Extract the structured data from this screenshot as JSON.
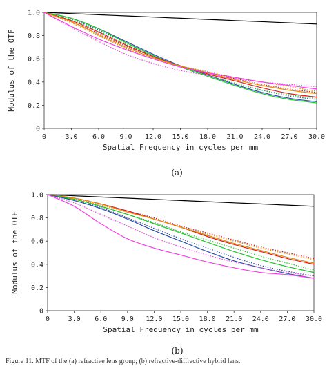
{
  "figure": {
    "caption": "Figure 11. MTF of the (a) refractive lens group; (b) refractive-diffractive hybrid lens."
  },
  "chart_data": [
    {
      "type": "line",
      "panel_label": "(a)",
      "xlabel": "Spatial Frequency in cycles per mm",
      "ylabel": "Modulus of the OTF",
      "xlim": [
        0,
        30
      ],
      "ylim": [
        0,
        1
      ],
      "xticks": [
        "0",
        "3.0",
        "6.0",
        "9.0",
        "12.0",
        "15.0",
        "18.0",
        "21.0",
        "24.0",
        "27.0",
        "30.0"
      ],
      "yticks": [
        "0",
        "0.2",
        "0.4",
        "0.6",
        "0.8",
        "1.0"
      ],
      "grid": false,
      "x": [
        0,
        3,
        6,
        9,
        12,
        15,
        18,
        21,
        24,
        27,
        30
      ],
      "series": [
        {
          "color": "#000000",
          "dash": "solid",
          "values": [
            1.0,
            0.99,
            0.98,
            0.97,
            0.96,
            0.95,
            0.94,
            0.93,
            0.92,
            0.91,
            0.9
          ]
        },
        {
          "color": "#2b4ea8",
          "dash": "solid",
          "values": [
            1.0,
            0.95,
            0.86,
            0.75,
            0.64,
            0.54,
            0.46,
            0.38,
            0.31,
            0.26,
            0.23
          ]
        },
        {
          "color": "#2b4ea8",
          "dash": "dotted",
          "values": [
            1.0,
            0.94,
            0.85,
            0.74,
            0.63,
            0.54,
            0.46,
            0.39,
            0.33,
            0.28,
            0.25
          ]
        },
        {
          "color": "#22c02a",
          "dash": "solid",
          "values": [
            1.0,
            0.95,
            0.86,
            0.74,
            0.63,
            0.53,
            0.45,
            0.37,
            0.3,
            0.25,
            0.22
          ]
        },
        {
          "color": "#22c02a",
          "dash": "dotted",
          "values": [
            1.0,
            0.94,
            0.84,
            0.73,
            0.62,
            0.53,
            0.46,
            0.39,
            0.33,
            0.29,
            0.26
          ]
        },
        {
          "color": "#d42020",
          "dash": "solid",
          "values": [
            1.0,
            0.93,
            0.83,
            0.72,
            0.62,
            0.54,
            0.47,
            0.41,
            0.35,
            0.3,
            0.27
          ]
        },
        {
          "color": "#d42020",
          "dash": "dotted",
          "values": [
            1.0,
            0.92,
            0.82,
            0.71,
            0.62,
            0.54,
            0.48,
            0.43,
            0.38,
            0.34,
            0.31
          ]
        },
        {
          "color": "#e08a10",
          "dash": "solid",
          "values": [
            1.0,
            0.92,
            0.81,
            0.7,
            0.61,
            0.54,
            0.48,
            0.42,
            0.37,
            0.33,
            0.3
          ]
        },
        {
          "color": "#e08a10",
          "dash": "dotted",
          "values": [
            1.0,
            0.91,
            0.8,
            0.69,
            0.6,
            0.54,
            0.49,
            0.44,
            0.4,
            0.36,
            0.32
          ]
        },
        {
          "color": "#f040e0",
          "dash": "solid",
          "values": [
            1.0,
            0.88,
            0.77,
            0.68,
            0.6,
            0.53,
            0.48,
            0.44,
            0.4,
            0.37,
            0.34
          ]
        },
        {
          "color": "#f040e0",
          "dash": "dotted",
          "values": [
            1.0,
            0.87,
            0.75,
            0.64,
            0.56,
            0.5,
            0.46,
            0.43,
            0.4,
            0.38,
            0.36
          ]
        }
      ]
    },
    {
      "type": "line",
      "panel_label": "(b)",
      "xlabel": "Spatial Frequency in cycles per mm",
      "ylabel": "Modulus of the OTF",
      "xlim": [
        0,
        30
      ],
      "ylim": [
        0,
        1
      ],
      "xticks": [
        "0",
        "3.0",
        "6.0",
        "9.0",
        "12.0",
        "15.0",
        "18.0",
        "21.0",
        "24.0",
        "27.0",
        "30.0"
      ],
      "yticks": [
        "0",
        "0.2",
        "0.4",
        "0.6",
        "0.8",
        "1.0"
      ],
      "grid": false,
      "x": [
        0,
        3,
        6,
        9,
        12,
        15,
        18,
        21,
        24,
        27,
        30
      ],
      "series": [
        {
          "color": "#000000",
          "dash": "solid",
          "values": [
            1.0,
            0.99,
            0.98,
            0.97,
            0.96,
            0.95,
            0.94,
            0.93,
            0.92,
            0.91,
            0.9
          ]
        },
        {
          "color": "#d42020",
          "dash": "solid",
          "values": [
            1.0,
            0.97,
            0.92,
            0.86,
            0.79,
            0.72,
            0.64,
            0.57,
            0.51,
            0.45,
            0.4
          ]
        },
        {
          "color": "#d42020",
          "dash": "dotted",
          "values": [
            1.0,
            0.97,
            0.92,
            0.86,
            0.8,
            0.73,
            0.67,
            0.61,
            0.55,
            0.5,
            0.45
          ]
        },
        {
          "color": "#e08a10",
          "dash": "solid",
          "values": [
            1.0,
            0.97,
            0.92,
            0.85,
            0.79,
            0.72,
            0.65,
            0.58,
            0.52,
            0.46,
            0.41
          ]
        },
        {
          "color": "#e08a10",
          "dash": "dotted",
          "values": [
            1.0,
            0.96,
            0.91,
            0.85,
            0.79,
            0.72,
            0.66,
            0.6,
            0.54,
            0.49,
            0.44
          ]
        },
        {
          "color": "#22c02a",
          "dash": "solid",
          "values": [
            1.0,
            0.96,
            0.9,
            0.83,
            0.75,
            0.67,
            0.59,
            0.51,
            0.44,
            0.38,
            0.33
          ]
        },
        {
          "color": "#22c02a",
          "dash": "dotted",
          "values": [
            1.0,
            0.96,
            0.9,
            0.83,
            0.76,
            0.68,
            0.61,
            0.54,
            0.47,
            0.41,
            0.35
          ]
        },
        {
          "color": "#2b4ea8",
          "dash": "solid",
          "values": [
            1.0,
            0.95,
            0.88,
            0.79,
            0.69,
            0.6,
            0.51,
            0.43,
            0.37,
            0.32,
            0.28
          ]
        },
        {
          "color": "#2b4ea8",
          "dash": "dotted",
          "values": [
            1.0,
            0.95,
            0.89,
            0.8,
            0.71,
            0.62,
            0.54,
            0.46,
            0.39,
            0.34,
            0.3
          ]
        },
        {
          "color": "#f040e0",
          "dash": "solid",
          "values": [
            1.0,
            0.9,
            0.75,
            0.62,
            0.54,
            0.48,
            0.42,
            0.37,
            0.33,
            0.31,
            0.28
          ]
        },
        {
          "color": "#f040e0",
          "dash": "dotted",
          "values": [
            1.0,
            0.93,
            0.83,
            0.73,
            0.63,
            0.55,
            0.48,
            0.42,
            0.37,
            0.33,
            0.3
          ]
        }
      ]
    }
  ]
}
